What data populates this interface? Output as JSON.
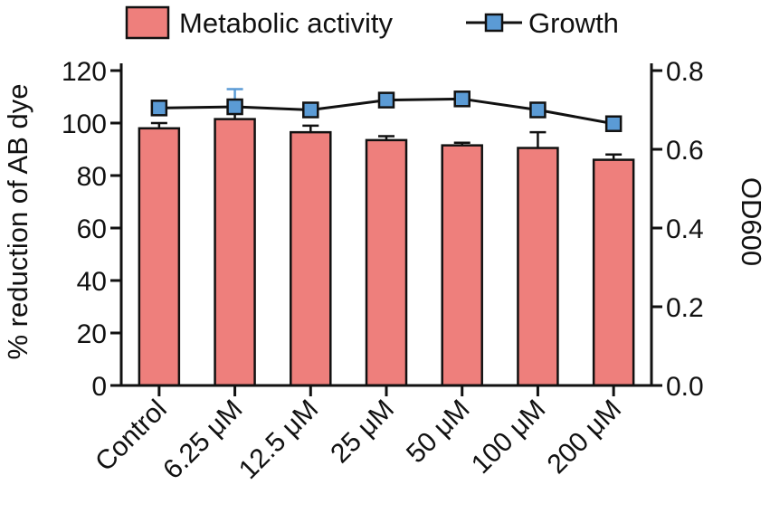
{
  "chart_data": {
    "type": "bar+line",
    "categories": [
      "Control",
      "6.25 μM",
      "12.5 μM",
      "25 μM",
      "50 μM",
      "100 μM",
      "200 μM"
    ],
    "series": [
      {
        "name": "Metabolic activity",
        "type": "bar",
        "axis": "left",
        "color": "#ee7f7c",
        "values": [
          98,
          101.5,
          96.5,
          93.5,
          91.5,
          90.5,
          86
        ],
        "error": [
          2,
          3.5,
          2.5,
          1.5,
          1,
          6,
          2
        ]
      },
      {
        "name": "Growth",
        "type": "line",
        "axis": "right",
        "color": "#5b9bd5",
        "values": [
          0.705,
          0.708,
          0.7,
          0.725,
          0.728,
          0.7,
          0.665
        ],
        "error": [
          0.005,
          0.045,
          0.012,
          0.006,
          0.006,
          0.005,
          0.005
        ]
      }
    ],
    "ylabel_left": "% reduction of AB dye",
    "ylabel_right": "OD600",
    "ylim_left": [
      0,
      120
    ],
    "ylim_right": [
      0,
      0.8
    ],
    "yticks_left": [
      "0",
      "20",
      "40",
      "60",
      "80",
      "100",
      "120"
    ],
    "yticks_right": [
      "0.0",
      "0.2",
      "0.4",
      "0.6",
      "0.8"
    ],
    "legend": [
      "Metabolic activity",
      "Growth"
    ],
    "legend_position": "top"
  }
}
